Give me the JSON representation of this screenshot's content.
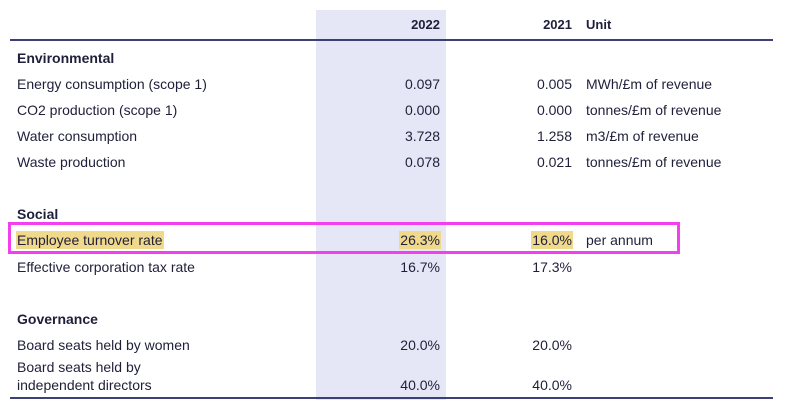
{
  "columns": {
    "y2022": "2022",
    "y2021": "2021",
    "unit": "Unit"
  },
  "sections": {
    "environmental": {
      "title": "Environmental",
      "rows": [
        {
          "label": "Energy consumption (scope 1)",
          "v2022": "0.097",
          "v2021": "0.005",
          "unit": "MWh/£m of revenue"
        },
        {
          "label": "CO2 production (scope 1)",
          "v2022": "0.000",
          "v2021": "0.000",
          "unit": "tonnes/£m of revenue"
        },
        {
          "label": "Water consumption",
          "v2022": "3.728",
          "v2021": "1.258",
          "unit": "m3/£m of revenue"
        },
        {
          "label": "Waste production",
          "v2022": "0.078",
          "v2021": "0.021",
          "unit": "tonnes/£m of revenue"
        }
      ]
    },
    "social": {
      "title": "Social",
      "rows": [
        {
          "label": "Employee turnover rate",
          "v2022": "26.3%",
          "v2021": "16.0%",
          "unit": "per annum"
        },
        {
          "label": "Effective corporation tax rate",
          "v2022": "16.7%",
          "v2021": "17.3%",
          "unit": ""
        }
      ]
    },
    "governance": {
      "title": "Governance",
      "rows": [
        {
          "label": "Board seats held by women",
          "v2022": "20.0%",
          "v2021": "20.0%",
          "unit": ""
        },
        {
          "label_line1": "Board seats held by",
          "label_line2": "independent directors",
          "v2022": "40.0%",
          "v2021": "40.0%",
          "unit": ""
        }
      ]
    }
  },
  "colors": {
    "column_highlight": "#e6e7f6",
    "row_highlight": "#f0d98a",
    "focus_box": "#f43ff0",
    "rule": "#3d3f77"
  }
}
